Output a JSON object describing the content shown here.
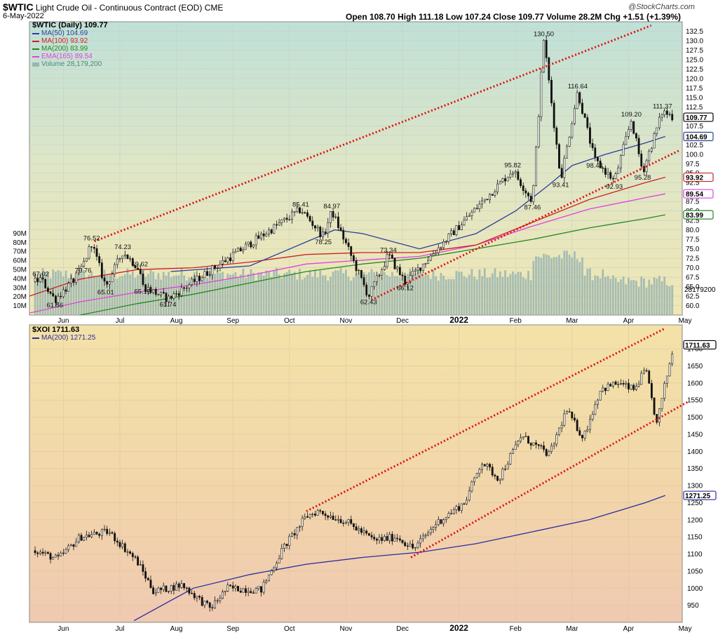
{
  "header": {
    "symbol": "$WTIC",
    "title": "Light Crude Oil - Continuous Contract (EOD)",
    "exchange": "CME",
    "date": "6-May-2022",
    "ohlc_text": "Open 108.70  High 111.18  Low 107.24  Close 109.77  Volume 28.2M  Chg +1.51 (+1.39%)",
    "logo": "@StockCharts.com"
  },
  "colors": {
    "ma50": "#2b3f9a",
    "ma100": "#cc2222",
    "ma200": "#228822",
    "ema165": "#e040e0",
    "volume": "#9ab5b0",
    "trend": "#e01010",
    "xoi_ma200": "#2b2ba0"
  },
  "chart_data": [
    {
      "type": "candlestick",
      "symbol": "$WTIC",
      "legend_title": "$WTIC (Daily) 109.77",
      "legend": [
        {
          "label": "MA(50) 104.69"
        },
        {
          "label": "MA(100) 93.92"
        },
        {
          "label": "MA(200) 83.99"
        },
        {
          "label": "EMA(165) 89.54"
        },
        {
          "label": "Volume 28,179,200"
        }
      ],
      "ylim": [
        57.5,
        135
      ],
      "yticks": [
        60,
        62.5,
        65,
        67.5,
        70,
        72.5,
        75,
        77.5,
        80,
        82.5,
        85,
        87.5,
        90,
        92.5,
        95,
        97.5,
        100,
        102.5,
        105,
        107.5,
        110,
        112.5,
        115,
        117.5,
        120,
        122.5,
        125,
        127.5,
        130,
        132.5
      ],
      "volume_ticks": [
        "10M",
        "20M",
        "30M",
        "40M",
        "50M",
        "60M",
        "70M",
        "80M",
        "90M"
      ],
      "volume_latest_label": "28179200",
      "key_prices": [
        {
          "m": 0.3,
          "v": 67.02,
          "label": "67.02"
        },
        {
          "m": 0.55,
          "v": 61.56,
          "label": "61.56"
        },
        {
          "m": 1.2,
          "v": 76.52,
          "label": "76.52"
        },
        {
          "m": 1.05,
          "v": 70.76,
          "label": "70.76"
        },
        {
          "m": 1.45,
          "v": 65.01,
          "label": "65.01"
        },
        {
          "m": 1.75,
          "v": 74.23,
          "label": "74.23"
        },
        {
          "m": 2.05,
          "v": 69.62,
          "label": "69.62"
        },
        {
          "m": 2.1,
          "v": 65.15,
          "label": "65.15"
        },
        {
          "m": 2.55,
          "v": 61.74,
          "label": "61.74"
        },
        {
          "m": 4.9,
          "v": 85.41,
          "label": "85.41"
        },
        {
          "m": 5.45,
          "v": 84.97,
          "label": "84.97"
        },
        {
          "m": 5.3,
          "v": 78.25,
          "label": "78.25"
        },
        {
          "m": 6.1,
          "v": 62.43,
          "label": "62.43"
        },
        {
          "m": 6.45,
          "v": 73.34,
          "label": "73.34"
        },
        {
          "m": 6.75,
          "v": 66.12,
          "label": "66.12"
        },
        {
          "m": 8.65,
          "v": 95.82,
          "label": "95.82"
        },
        {
          "m": 9.0,
          "v": 87.46,
          "label": "87.46"
        },
        {
          "m": 9.2,
          "v": 130.5,
          "label": "130.50"
        },
        {
          "m": 9.5,
          "v": 93.41,
          "label": "93.41"
        },
        {
          "m": 9.8,
          "v": 116.64,
          "label": "116.64"
        },
        {
          "m": 10.1,
          "v": 98.44,
          "label": "98.44"
        },
        {
          "m": 10.45,
          "v": 92.93,
          "label": "92.93"
        },
        {
          "m": 10.75,
          "v": 109.2,
          "label": "109.20"
        },
        {
          "m": 10.95,
          "v": 95.28,
          "label": "95.28"
        },
        {
          "m": 11.3,
          "v": 111.37,
          "label": "111.37"
        }
      ],
      "last_labels": [
        {
          "v": 109.77,
          "label": "109.77"
        },
        {
          "v": 104.69,
          "label": "104.69"
        },
        {
          "v": 93.92,
          "label": "93.92"
        },
        {
          "v": 89.54,
          "label": "89.54"
        },
        {
          "v": 83.99,
          "label": "83.99"
        }
      ],
      "ma50": [
        [
          2.6,
          69
        ],
        [
          4,
          70.5
        ],
        [
          5.5,
          80
        ],
        [
          6,
          79
        ],
        [
          7,
          75
        ],
        [
          8,
          79
        ],
        [
          8.7,
          85
        ],
        [
          9.3,
          92
        ],
        [
          9.7,
          97
        ],
        [
          10.3,
          100
        ],
        [
          11,
          103
        ],
        [
          11.35,
          104.69
        ]
      ],
      "ma100": [
        [
          0,
          62
        ],
        [
          1,
          67
        ],
        [
          2,
          69.5
        ],
        [
          3,
          70
        ],
        [
          4,
          71.5
        ],
        [
          5,
          73.5
        ],
        [
          6,
          74
        ],
        [
          7,
          74
        ],
        [
          8,
          76
        ],
        [
          9,
          82
        ],
        [
          10,
          88
        ],
        [
          11,
          92.5
        ],
        [
          11.35,
          93.92
        ]
      ],
      "ma200": [
        [
          0.45,
          55
        ],
        [
          1,
          57.5
        ],
        [
          2,
          60.5
        ],
        [
          3,
          63
        ],
        [
          4,
          66
        ],
        [
          5,
          69
        ],
        [
          6,
          71
        ],
        [
          7,
          72.5
        ],
        [
          8,
          75
        ],
        [
          9,
          77.5
        ],
        [
          10,
          80.5
        ],
        [
          11,
          83
        ],
        [
          11.35,
          83.99
        ]
      ],
      "ema165": [
        [
          0,
          57.7
        ],
        [
          1,
          61
        ],
        [
          2,
          63.5
        ],
        [
          3,
          65.5
        ],
        [
          4,
          68
        ],
        [
          5,
          71
        ],
        [
          6,
          72
        ],
        [
          7,
          73
        ],
        [
          8,
          76
        ],
        [
          9,
          81
        ],
        [
          10,
          85.5
        ],
        [
          11,
          88.5
        ],
        [
          11.35,
          89.54
        ]
      ],
      "trendlines": [
        {
          "from": [
            1.25,
            77
          ],
          "to": [
            11.1,
            134
          ]
        },
        {
          "from": [
            6.15,
            61.5
          ],
          "to": [
            11.6,
            101
          ]
        }
      ]
    },
    {
      "type": "candlestick",
      "symbol": "$XOI",
      "legend_title": "$XOI 1711.63",
      "legend": [
        {
          "label": "MA(200) 1271.25"
        }
      ],
      "ylim": [
        900,
        1770
      ],
      "yticks": [
        950,
        1000,
        1050,
        1100,
        1150,
        1200,
        1250,
        1300,
        1350,
        1400,
        1450,
        1500,
        1550,
        1600,
        1650,
        1700
      ],
      "last_labels": [
        {
          "v": 1711.63,
          "label": "1711.63"
        },
        {
          "v": 1271.25,
          "label": "1271.25"
        }
      ],
      "ma200": [
        [
          1.95,
          905
        ],
        [
          3,
          1000
        ],
        [
          4,
          1040
        ],
        [
          5,
          1070
        ],
        [
          6,
          1090
        ],
        [
          7,
          1105
        ],
        [
          8,
          1130
        ],
        [
          9,
          1165
        ],
        [
          10,
          1200
        ],
        [
          11,
          1250
        ],
        [
          11.35,
          1271.25
        ]
      ],
      "trendlines": [
        {
          "from": [
            5.0,
            1225
          ],
          "to": [
            11.35,
            1760
          ]
        },
        {
          "from": [
            6.85,
            1090
          ],
          "to": [
            11.75,
            1545
          ]
        }
      ]
    }
  ],
  "x_axis": {
    "labels": [
      {
        "m": 0.7,
        "label": "Jun"
      },
      {
        "m": 1.7,
        "label": "Jul"
      },
      {
        "m": 2.7,
        "label": "Aug"
      },
      {
        "m": 3.7,
        "label": "Sep"
      },
      {
        "m": 4.7,
        "label": "Oct"
      },
      {
        "m": 5.7,
        "label": "Nov"
      },
      {
        "m": 6.7,
        "label": "Dec"
      },
      {
        "m": 7.7,
        "label": "2022"
      },
      {
        "m": 8.7,
        "label": "Feb"
      },
      {
        "m": 9.7,
        "label": "Mar"
      },
      {
        "m": 10.7,
        "label": "Apr"
      },
      {
        "m": 11.7,
        "label": "May"
      }
    ]
  }
}
